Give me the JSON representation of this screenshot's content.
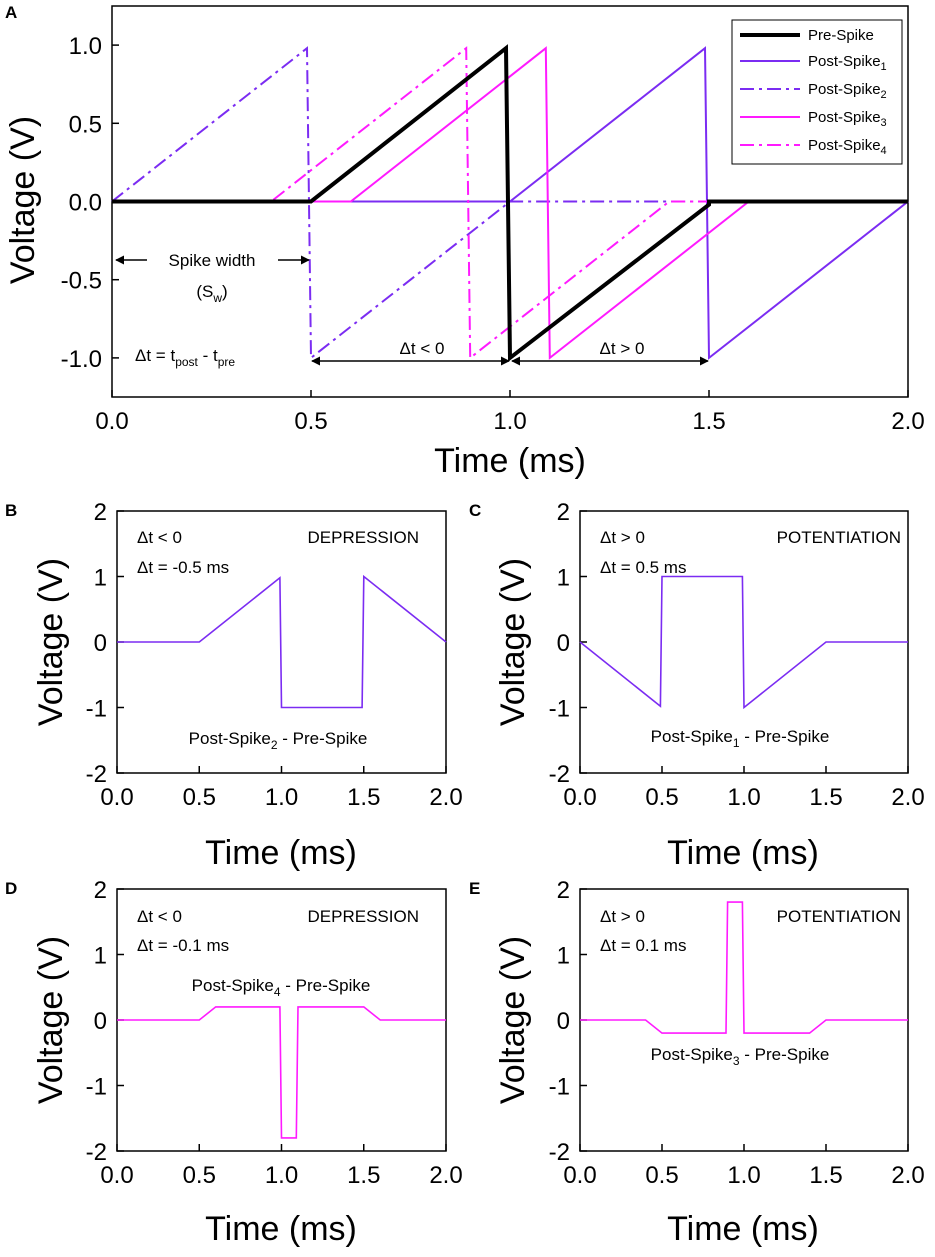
{
  "colors": {
    "pre": "#000000",
    "post_purple": "#7b2cf2",
    "post_magenta": "#ff1aff",
    "depression": "#b8560e",
    "potentiation": "#0f6b6b"
  },
  "chart_data": [
    {
      "panel": "A",
      "type": "line",
      "xlabel": "Time (ms)",
      "ylabel": "Voltage (V)",
      "xlim": [
        0,
        2.0
      ],
      "ylim": [
        -1.25,
        1.25
      ],
      "xticks": [
        0,
        0.5,
        1.0,
        1.5,
        2.0
      ],
      "xtick_labels": [
        "0.0",
        "0.5",
        "1.0",
        "1.5",
        "2.0"
      ],
      "yticks": [
        1.0,
        0.5,
        0.0,
        -0.5,
        -1.0
      ],
      "ytick_labels": [
        "1.0",
        "0.5",
        "0.0",
        "-0.5",
        "-1.0"
      ],
      "legend_position": "top-right",
      "series": [
        {
          "name": "Pre-Spike",
          "sub": "",
          "color": "pre",
          "dash": "solid",
          "width": 4,
          "x": [
            0,
            0.5,
            0.99,
            1.0,
            1.5,
            1.5,
            2.0
          ],
          "y": [
            0,
            0,
            0.98,
            -1.0,
            -0.02,
            0,
            0
          ]
        },
        {
          "name": "Post-Spike",
          "sub": "1",
          "color": "post_purple",
          "dash": "solid",
          "width": 2,
          "x": [
            0,
            1.0,
            1.49,
            1.5,
            2.0
          ],
          "y": [
            0,
            0,
            0.98,
            -1.0,
            0
          ]
        },
        {
          "name": "Post-Spike",
          "sub": "2",
          "color": "post_purple",
          "dash": "dashdot",
          "width": 2,
          "x": [
            0,
            0.49,
            0.5,
            1.0,
            2.0
          ],
          "y": [
            0,
            0.98,
            -1.0,
            0,
            0
          ]
        },
        {
          "name": "Post-Spike",
          "sub": "3",
          "color": "post_magenta",
          "dash": "solid",
          "width": 2,
          "x": [
            0,
            0.6,
            1.09,
            1.1,
            1.6,
            2.0
          ],
          "y": [
            0,
            0,
            0.98,
            -1.0,
            0,
            0
          ]
        },
        {
          "name": "Post-Spike",
          "sub": "4",
          "color": "post_magenta",
          "dash": "dashdot",
          "width": 2,
          "x": [
            0,
            0.4,
            0.89,
            0.9,
            1.4,
            2.0
          ],
          "y": [
            0,
            0,
            0.98,
            -1.0,
            0,
            0
          ]
        }
      ],
      "annotations": {
        "spike_width": "Spike width",
        "sw_main": "(S",
        "sw_sub": "w",
        "sw_close": ")",
        "dt_main": "Δt = t",
        "dt_post": "post",
        "dt_mid": " - t",
        "dt_pre": "pre",
        "dt_neg": "Δt < 0",
        "dt_pos": "Δt > 0"
      }
    },
    {
      "panel": "B",
      "type": "line",
      "xlabel": "Time (ms)",
      "ylabel": "Voltage (V)",
      "xlim": [
        0,
        2.0
      ],
      "ylim": [
        -2,
        2
      ],
      "xticks": [
        0,
        0.5,
        1.0,
        1.5,
        2.0
      ],
      "xtick_labels": [
        "0.0",
        "0.5",
        "1.0",
        "1.5",
        "2.0"
      ],
      "yticks": [
        2,
        1,
        0,
        -1,
        -2
      ],
      "ytick_labels": [
        "2",
        "1",
        "0",
        "-1",
        "-2"
      ],
      "color": "post_purple",
      "x": [
        0,
        0.5,
        0.99,
        1.0,
        1.49,
        1.5,
        2.0
      ],
      "y": [
        0,
        0,
        0.98,
        -1.0,
        -1.0,
        1.0,
        0
      ],
      "dt_line1": "Δt < 0",
      "dt_line2": "Δt = -0.5 ms",
      "label": "DEPRESSION",
      "label_color": "depression",
      "formula_main": "Post-Spike",
      "formula_sub": "2",
      "formula_rest": " - Pre-Spike"
    },
    {
      "panel": "C",
      "type": "line",
      "xlabel": "Time (ms)",
      "ylabel": "Voltage (V)",
      "xlim": [
        0,
        2.0
      ],
      "ylim": [
        -2,
        2
      ],
      "xticks": [
        0,
        0.5,
        1.0,
        1.5,
        2.0
      ],
      "xtick_labels": [
        "0.0",
        "0.5",
        "1.0",
        "1.5",
        "2.0"
      ],
      "yticks": [
        2,
        1,
        0,
        -1,
        -2
      ],
      "ytick_labels": [
        "2",
        "1",
        "0",
        "-1",
        "-2"
      ],
      "color": "post_purple",
      "x": [
        0,
        0.49,
        0.5,
        0.99,
        1.0,
        1.5,
        2.0
      ],
      "y": [
        0,
        -0.98,
        1.0,
        1.0,
        -1.0,
        0,
        0
      ],
      "dt_line1": "Δt > 0",
      "dt_line2": "Δt = 0.5 ms",
      "label": "POTENTIATION",
      "label_color": "potentiation",
      "formula_main": "Post-Spike",
      "formula_sub": "1",
      "formula_rest": " - Pre-Spike"
    },
    {
      "panel": "D",
      "type": "line",
      "xlabel": "Time (ms)",
      "ylabel": "Voltage (V)",
      "xlim": [
        0,
        2.0
      ],
      "ylim": [
        -2,
        2
      ],
      "xticks": [
        0,
        0.5,
        1.0,
        1.5,
        2.0
      ],
      "xtick_labels": [
        "0.0",
        "0.5",
        "1.0",
        "1.5",
        "2.0"
      ],
      "yticks": [
        2,
        1,
        0,
        -1,
        -2
      ],
      "ytick_labels": [
        "2",
        "1",
        "0",
        "-1",
        "-2"
      ],
      "color": "post_magenta",
      "x": [
        0,
        0.5,
        0.6,
        0.99,
        1.0,
        1.09,
        1.1,
        1.5,
        1.6,
        2.0
      ],
      "y": [
        0,
        0,
        0.2,
        0.2,
        -1.8,
        -1.8,
        0.2,
        0.2,
        0,
        0
      ],
      "dt_line1": "Δt < 0",
      "dt_line2": "Δt = -0.1 ms",
      "label": "DEPRESSION",
      "label_color": "depression",
      "formula_main": "Post-Spike",
      "formula_sub": "4",
      "formula_rest": " - Pre-Spike"
    },
    {
      "panel": "E",
      "type": "line",
      "xlabel": "Time (ms)",
      "ylabel": "Voltage (V)",
      "xlim": [
        0,
        2.0
      ],
      "ylim": [
        -2,
        2
      ],
      "xticks": [
        0,
        0.5,
        1.0,
        1.5,
        2.0
      ],
      "xtick_labels": [
        "0.0",
        "0.5",
        "1.0",
        "1.5",
        "2.0"
      ],
      "yticks": [
        2,
        1,
        0,
        -1,
        -2
      ],
      "ytick_labels": [
        "2",
        "1",
        "0",
        "-1",
        "-2"
      ],
      "color": "post_magenta",
      "x": [
        0,
        0.4,
        0.5,
        0.89,
        0.9,
        0.99,
        1.0,
        1.4,
        1.5,
        2.0
      ],
      "y": [
        0,
        0,
        -0.2,
        -0.2,
        1.8,
        1.8,
        -0.2,
        -0.2,
        0,
        0
      ],
      "dt_line1": "Δt > 0",
      "dt_line2": "Δt = 0.1 ms",
      "label": "POTENTIATION",
      "label_color": "potentiation",
      "formula_main": "Post-Spike",
      "formula_sub": "3",
      "formula_rest": " - Pre-Spike"
    }
  ]
}
